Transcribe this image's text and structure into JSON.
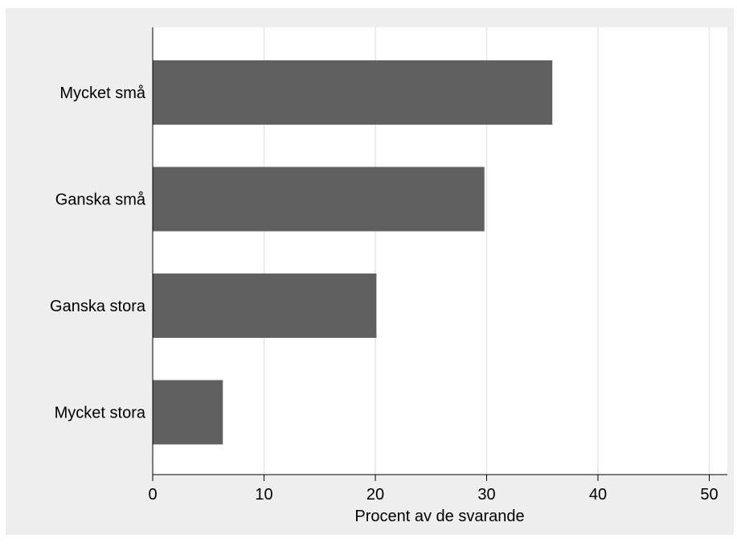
{
  "chart_data": {
    "type": "bar",
    "orientation": "horizontal",
    "categories": [
      "Mycket små",
      "Ganska små",
      "Ganska stora",
      "Mycket stora"
    ],
    "values": [
      35.9,
      29.8,
      20.1,
      6.3
    ],
    "xlabel": "Procent av de svarande",
    "ylabel": "",
    "xlim": [
      0,
      51.5
    ],
    "xticks": [
      0,
      10,
      20,
      30,
      40,
      50
    ],
    "xtick_labels": [
      "0",
      "10",
      "20",
      "30",
      "40",
      "50"
    ],
    "grid": "vertical",
    "legend": "none",
    "colors": {
      "bar": "#606060",
      "outer_background": "#eeeeee",
      "plot_background": "#ffffff",
      "gridline": "#e6e6e6",
      "axis": "#000000"
    }
  }
}
